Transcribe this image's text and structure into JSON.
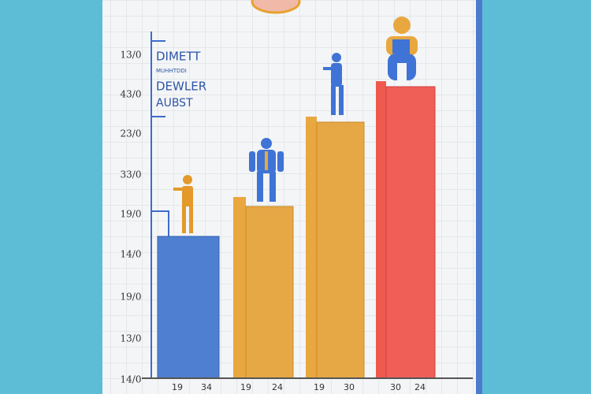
{
  "legend": {
    "title": "DIMETT",
    "subtitle": "MUHHTDDI",
    "line_1": "DEWLER",
    "line_2": "AUBST"
  },
  "y_labels": [
    "13/0",
    "43/0",
    "23/0",
    "33/0",
    "19/0",
    "14/0",
    "19/0",
    "13/0",
    "14/0"
  ],
  "x_labels": [
    "19",
    "34",
    "19",
    "24",
    "19",
    "30",
    "30",
    "24"
  ]
}
